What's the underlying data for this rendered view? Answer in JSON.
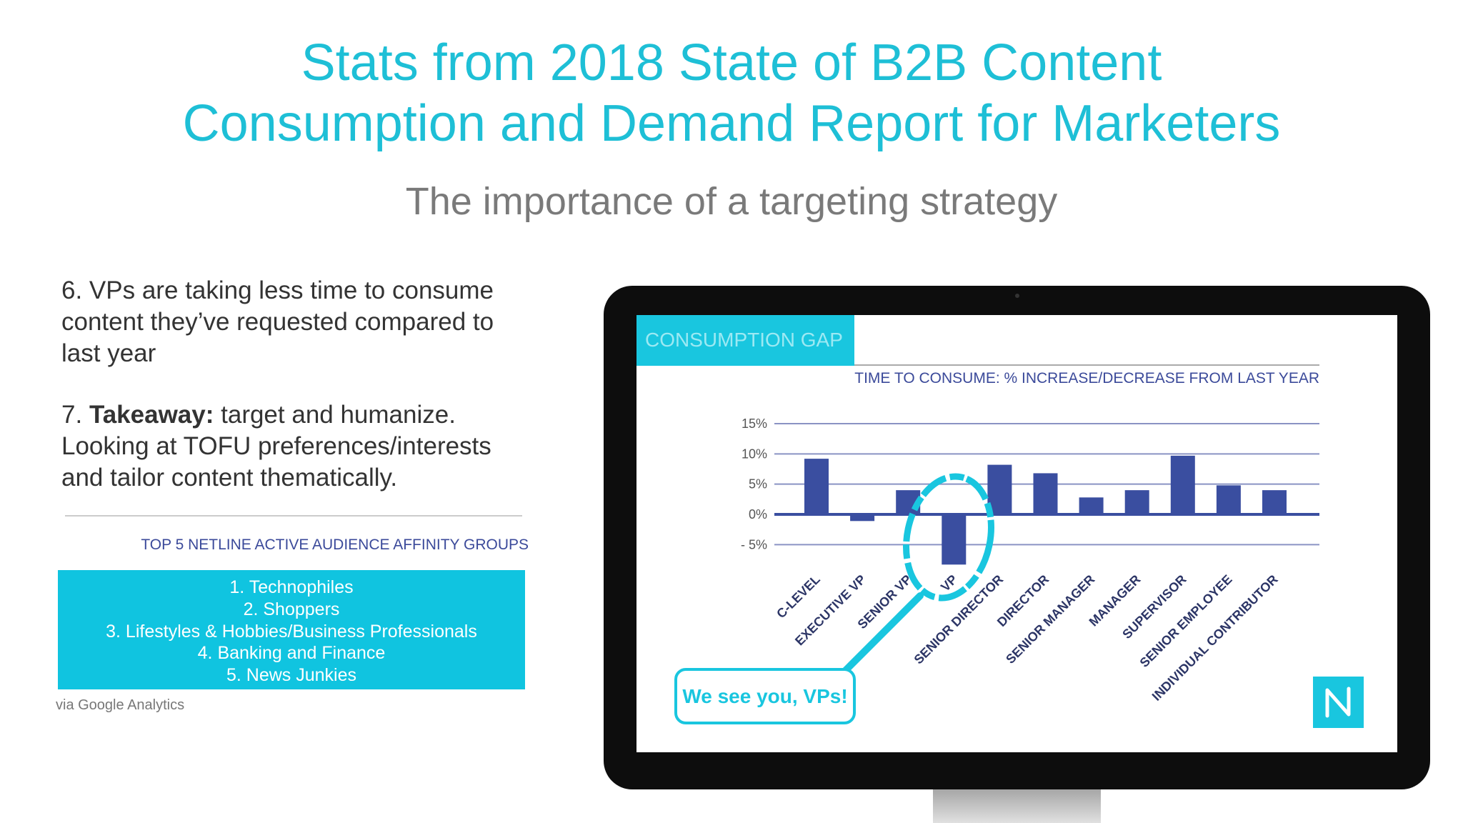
{
  "header": {
    "title": [
      "Stats from 2018 State of B2B Content",
      "Consumption and Demand Report for Marketers"
    ],
    "subtitle": "The importance of a targeting strategy"
  },
  "body": {
    "points": [
      {
        "lines": [
          "6. VPs are taking less time to consume",
          "content they’ve requested compared to",
          "last year"
        ]
      },
      {
        "lead": "7.",
        "bold": "Takeaway:",
        "lines": [
          "target and humanize.",
          "Looking at TOFU preferences/interests",
          "and tailor content thematically."
        ]
      }
    ],
    "groups": {
      "title": "TOP 5 NETLINE ACTIVE AUDIENCE AFFINITY GROUPS",
      "items": [
        "1. Technophiles",
        "2. Shoppers",
        "3. Lifestyles & Hobbies/Business Professionals",
        "4. Banking and Finance",
        "5. News Junkies"
      ]
    },
    "source": "via Google Analytics"
  },
  "chart_data": {
    "type": "bar",
    "title": "CONSUMPTION GAP",
    "subtitle": "TIME TO CONSUME: % INCREASE/DECREASE FROM LAST YEAR",
    "categories": [
      "C-LEVEL",
      "EXECUTIVE VP",
      "SENIOR VP",
      "VP",
      "SENIOR DIRECTOR",
      "DIRECTOR",
      "SENIOR MANAGER",
      "MANAGER",
      "SUPERVISOR",
      "SENIOR EMPLOYEE",
      "INDIVIDUAL CONTRIBUTOR"
    ],
    "values": [
      9.2,
      -1.1,
      4,
      -8.3,
      8.2,
      6.8,
      2.8,
      4,
      9.7,
      4.8,
      4
    ],
    "color": "#3a4ea0",
    "ylim": [
      -10,
      15
    ],
    "yticks": [
      {
        "value": 15,
        "label": "15%"
      },
      {
        "value": 10,
        "label": "10%"
      },
      {
        "value": 5,
        "label": "5%"
      },
      {
        "value": 0,
        "label": "0%"
      },
      {
        "value": -5,
        "label": "- 5%"
      }
    ],
    "grid": true,
    "annotation": "We see you, VPs!"
  }
}
